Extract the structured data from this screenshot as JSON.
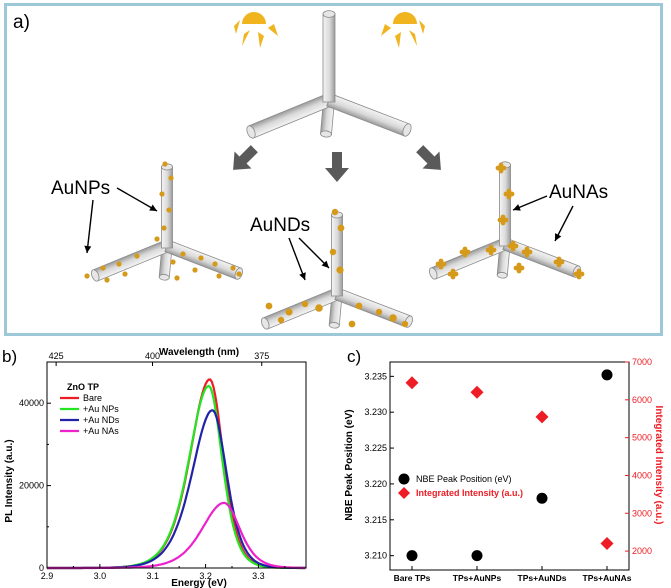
{
  "panel_a": {
    "letter": "a)",
    "labels": {
      "np": "AuNPs",
      "nd": "AuNDs",
      "na": "AuNAs"
    },
    "colors": {
      "frame": "#9cc8d8",
      "sun": "#f0b41e",
      "particle": "#d69a1a",
      "rod": "#d9d9d9",
      "arrow": "#5a5a5a"
    },
    "icons": [
      "sun-icon",
      "arrow-icon"
    ]
  },
  "chart_data": [
    {
      "type": "line",
      "panel": "b)",
      "xlabel": "Energy (eV)",
      "ylabel": "PL Intensity (a.u.)",
      "x2label": "Wavelength (nm)",
      "xlim": [
        2.9,
        3.39
      ],
      "ylim": [
        0,
        50000
      ],
      "xticks": [
        "2.9",
        "3.0",
        "3.1",
        "3.2",
        "3.3"
      ],
      "yticks": [
        "0",
        "20000",
        "40000"
      ],
      "x2ticks": [
        "425",
        "400",
        "375"
      ],
      "legend_title": "ZnO TP",
      "legend_position": "top-left",
      "series": [
        {
          "name": "Bare",
          "color": "#ee1c24",
          "peak_x": 3.208,
          "peak_y": 45800,
          "width_low": 0.05,
          "width_high": 0.034
        },
        {
          "name": "+Au NPs",
          "color": "#22e622",
          "peak_x": 3.206,
          "peak_y": 44200,
          "width_low": 0.05,
          "width_high": 0.034
        },
        {
          "name": "+Au NDs",
          "color": "#2222a8",
          "peak_x": 3.213,
          "peak_y": 38300,
          "width_low": 0.052,
          "width_high": 0.036
        },
        {
          "name": "+Au NAs",
          "color": "#ee22cc",
          "peak_x": 3.235,
          "peak_y": 15800,
          "width_low": 0.056,
          "width_high": 0.04
        }
      ]
    },
    {
      "type": "scatter",
      "panel": "c)",
      "categories": [
        "Bare TPs",
        "TPs+AuNPs",
        "TPs+AuNDs",
        "TPs+AuNAs"
      ],
      "ylabel": "NBE Peak Position (eV)",
      "y2label": "Integrated Intensity (a.u.)",
      "ylim": [
        3.208,
        3.237
      ],
      "y2lim": [
        1500,
        7000
      ],
      "yticks": [
        "3.210",
        "3.215",
        "3.220",
        "3.225",
        "3.230",
        "3.235"
      ],
      "y2ticks": [
        "2000",
        "3000",
        "4000",
        "5000",
        "6000",
        "7000"
      ],
      "legend_position": "center-left",
      "series": [
        {
          "name": "NBE Peak Position (eV)",
          "color": "#000000",
          "marker": "circle",
          "axis": "left",
          "values": [
            3.21,
            3.21,
            3.218,
            3.2352
          ]
        },
        {
          "name": "Integrated Intensity (a.u.)",
          "color": "#ee1c24",
          "marker": "diamond",
          "axis": "right",
          "values": [
            6450,
            6200,
            5550,
            2200
          ]
        }
      ]
    }
  ]
}
